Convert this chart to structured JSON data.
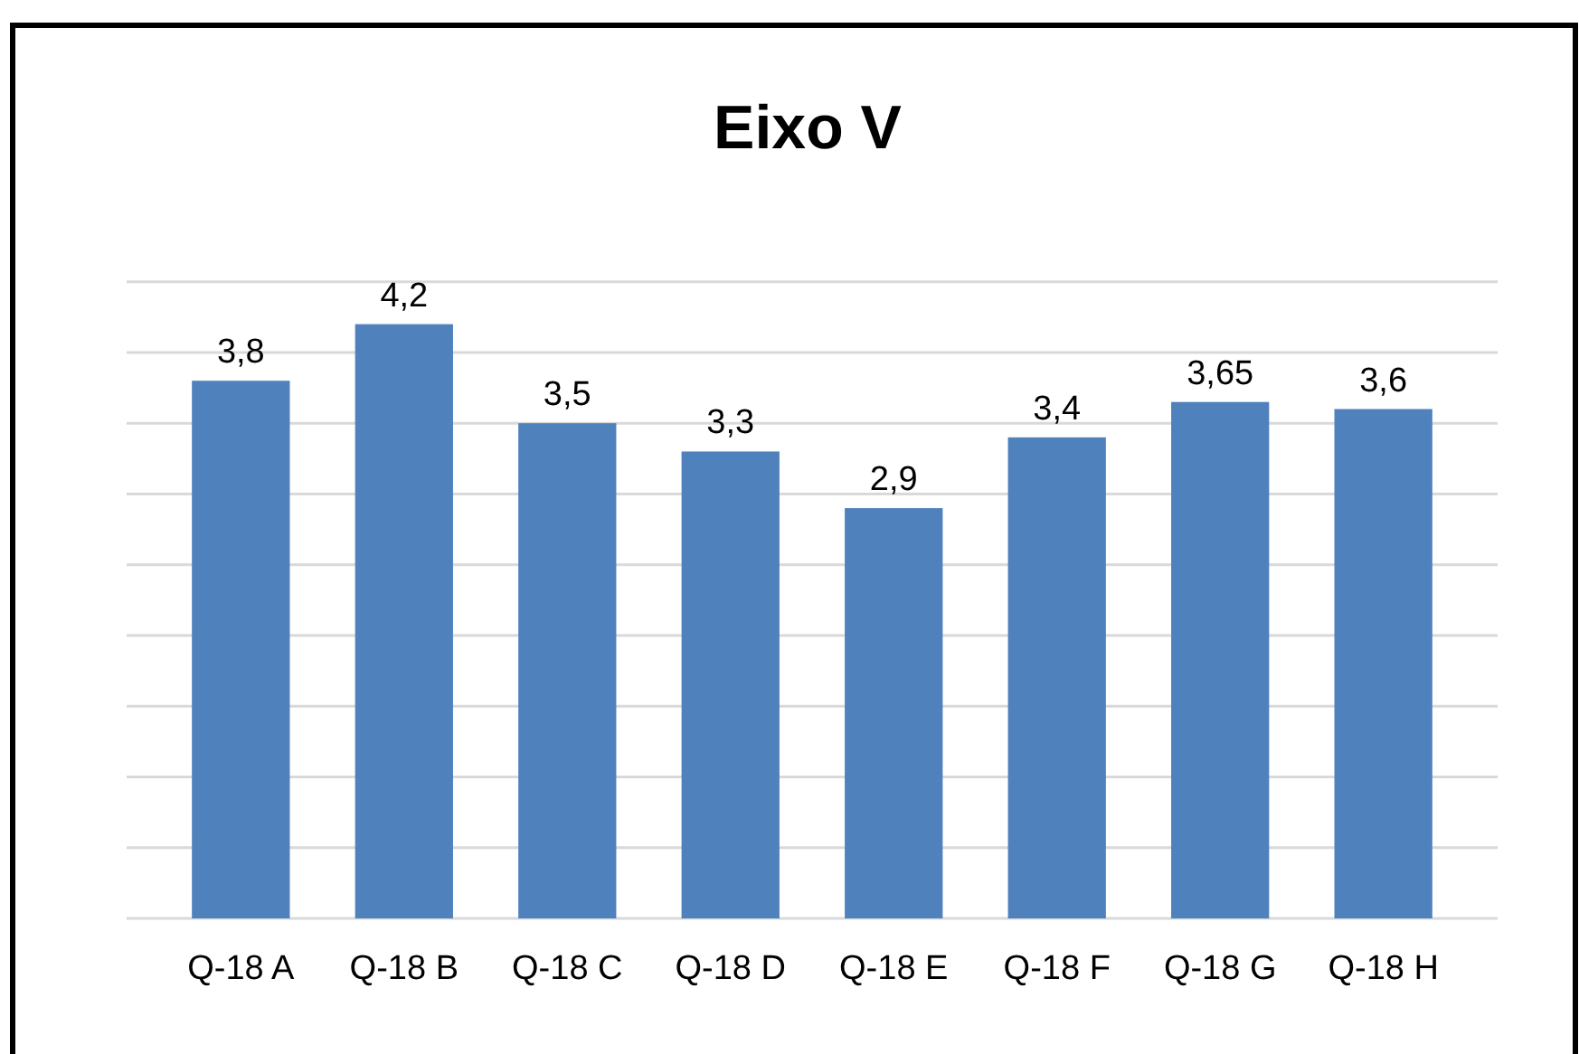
{
  "chart_data": {
    "type": "bar",
    "title": "Eixo V",
    "categories": [
      "Q-18 A",
      "Q-18 B",
      "Q-18 C",
      "Q-18 D",
      "Q-18 E",
      "Q-18 F",
      "Q-18 G",
      "Q-18 H"
    ],
    "values": [
      3.8,
      4.2,
      3.5,
      3.3,
      2.9,
      3.4,
      3.65,
      3.6
    ],
    "value_labels": [
      "3,8",
      "4,2",
      "3,5",
      "3,3",
      "2,9",
      "3,4",
      "3,65",
      "3,6"
    ],
    "color": "#4f81bd",
    "grid": "y",
    "tick_labels": "x"
  }
}
